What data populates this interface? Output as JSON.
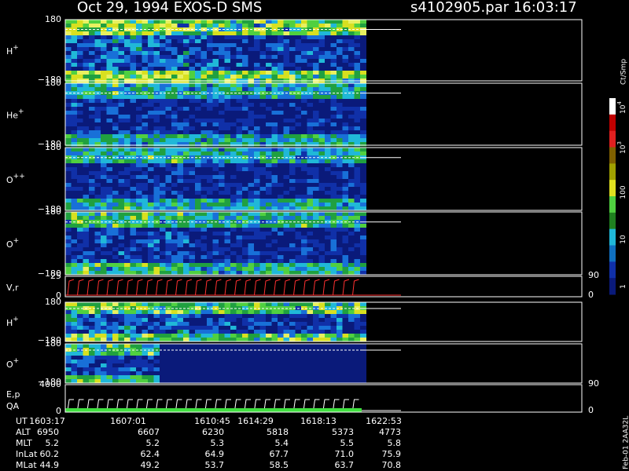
{
  "header": {
    "title": "Oct 29, 1994   EXOS-D SMS",
    "file_time": "s4102905.par  16:03:17"
  },
  "panels": [
    {
      "label": "H",
      "charge": "+",
      "ticks": [
        "180",
        "−180"
      ]
    },
    {
      "label": "He",
      "charge": "+",
      "ticks": [
        "180",
        "−180"
      ]
    },
    {
      "label": "O",
      "charge": "++",
      "ticks": [
        "180",
        "−180"
      ]
    },
    {
      "label": "O",
      "charge": "+",
      "ticks": [
        "180",
        "−180"
      ]
    },
    {
      "label": "V,r",
      "ticks": [
        "25",
        "0"
      ],
      "right_ticks": [
        "90",
        "0"
      ]
    },
    {
      "label": "H",
      "charge": "+",
      "ticks": [
        "180",
        "−180"
      ]
    },
    {
      "label": "O",
      "charge": "+",
      "ticks": [
        "180",
        "−180"
      ]
    },
    {
      "label": "E,p",
      "label2": "QA",
      "ticks": [
        "4000",
        "0"
      ],
      "right_ticks": [
        "90",
        "0"
      ]
    }
  ],
  "colorbar": {
    "unit": "Ct/Smp",
    "labels": [
      {
        "base": "10",
        "exp": "4"
      },
      {
        "base": "10",
        "exp": "3"
      },
      {
        "base": "100"
      },
      {
        "base": "10"
      },
      {
        "base": "1"
      }
    ]
  },
  "table": {
    "rows": [
      {
        "label": "UT",
        "values": [
          "1603:17",
          "1607:01",
          "1610:45",
          "1614:29",
          "1618:13",
          "1622:53"
        ]
      },
      {
        "label": "ALT",
        "values": [
          "6950",
          "6607",
          "6230",
          "5818",
          "5373",
          "4773"
        ]
      },
      {
        "label": "MLT",
        "values": [
          "5.2",
          "5.2",
          "5.3",
          "5.4",
          "5.5",
          "5.8"
        ]
      },
      {
        "label": "InLat",
        "values": [
          "60.2",
          "62.4",
          "64.9",
          "67.7",
          "71.0",
          "75.9"
        ]
      },
      {
        "label": "MLat",
        "values": [
          "44.9",
          "49.2",
          "53.7",
          "58.5",
          "63.7",
          "70.8"
        ]
      }
    ]
  },
  "footer": "Feb-01 2AA32L"
}
